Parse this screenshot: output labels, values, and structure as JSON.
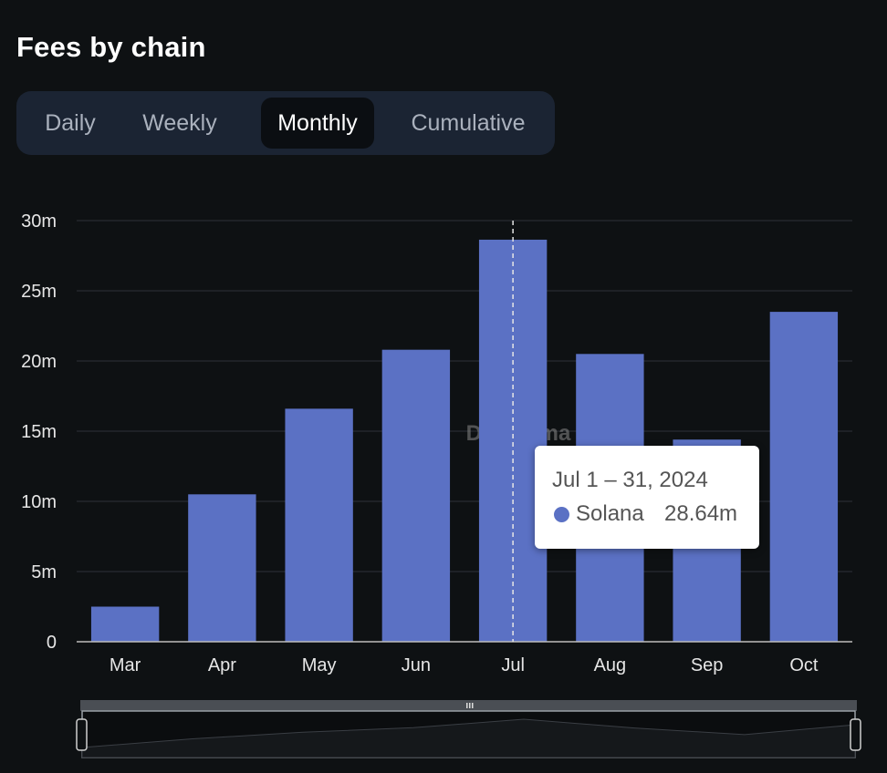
{
  "header": {
    "title": "Fees by chain"
  },
  "tabs": [
    {
      "label": "Daily",
      "active": false
    },
    {
      "label": "Weekly",
      "active": false
    },
    {
      "label": "Monthly",
      "active": true
    },
    {
      "label": "Cumulative",
      "active": false
    }
  ],
  "watermark": "DefiLlama",
  "tooltip": {
    "date": "Jul 1 – 31, 2024",
    "series": "Solana",
    "value": "28.64m"
  },
  "colors": {
    "bar": "#5b71c4",
    "background": "#0e1113",
    "grid": "#23272c",
    "axis_text": "#e6e6e6"
  },
  "chart_data": {
    "type": "bar",
    "title": "Fees by chain",
    "categories": [
      "Mar",
      "Apr",
      "May",
      "Jun",
      "Jul",
      "Aug",
      "Sep",
      "Oct"
    ],
    "series": [
      {
        "name": "Solana",
        "values": [
          2.5,
          10.5,
          16.6,
          20.8,
          28.64,
          20.5,
          14.4,
          23.5
        ]
      }
    ],
    "ylim": [
      0,
      30
    ],
    "yticks": [
      0,
      5,
      10,
      15,
      20,
      25,
      30
    ],
    "ytick_labels": [
      "0",
      "5m",
      "10m",
      "15m",
      "20m",
      "25m",
      "30m"
    ],
    "xlabel": "",
    "ylabel": "",
    "highlighted_category": "Jul",
    "brush_range": [
      0,
      1
    ]
  }
}
